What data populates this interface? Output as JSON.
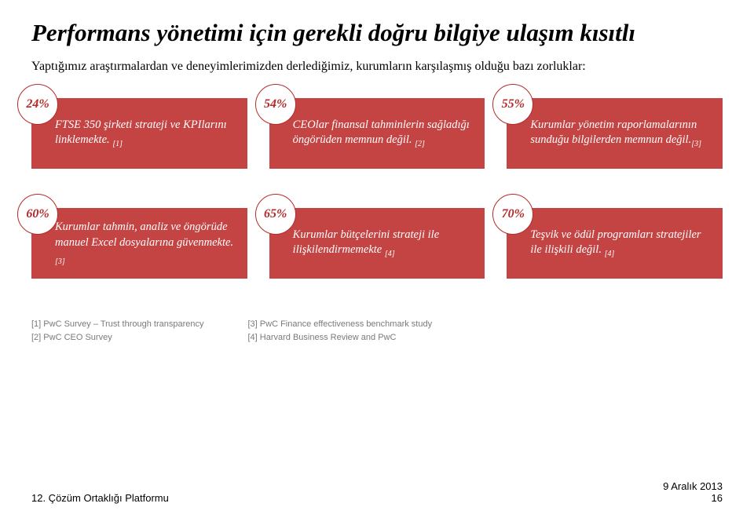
{
  "title": "Performans yönetimi için gerekli doğru bilgiye ulaşım kısıtlı",
  "subtitle": "Yaptığımız araştırmalardan ve deneyimlerimizden derlediğimiz, kurumların karşılaşmış olduğu bazı zorluklar:",
  "colors": {
    "badge_bg": "#ffffff",
    "badge_text": "#b52a2a",
    "card_bg": "#c44444",
    "tint_bg": "#e7c9c9",
    "tint_overlay": "rgba(196,68,68,0.92)",
    "card_text": "#ffffff",
    "ref_text": "#7a7a7a",
    "badge_border": "#b52a2a"
  },
  "row1": [
    {
      "pct": "24%",
      "text": "FTSE 350 şirketi strateji ve KPIlarını linklemekte.",
      "ref": "[1]"
    },
    {
      "pct": "54%",
      "text": "CEOlar finansal tahminlerin sağladığı öngörüden memnun değil.",
      "ref": "[2]"
    },
    {
      "pct": "55%",
      "text": "Kurumlar yönetim raporlamalarının sunduğu bilgilerden memnun değil.",
      "ref": "[3]"
    }
  ],
  "row2": [
    {
      "pct": "60%",
      "text": "Kurumlar tahmin, analiz ve öngörüde manuel Excel dosyalarına güvenmekte.",
      "ref": "[3]"
    },
    {
      "pct": "65%",
      "text": "Kurumlar  bütçelerini strateji ile ilişkilendirmemekte",
      "ref": "[4]"
    },
    {
      "pct": "70%",
      "text": "Teşvik ve ödül programları stratejiler ile ilişkili değil.",
      "ref": "[4]"
    }
  ],
  "refs_left": {
    "l1": "[1] PwC Survey – Trust through transparency",
    "l2": "[2] PwC CEO Survey"
  },
  "refs_right": {
    "l1": "[3] PwC Finance effectiveness benchmark study",
    "l2": "[4] Harvard Business Review and PwC"
  },
  "footer": {
    "left": "12. Çözüm Ortaklığı Platformu",
    "date": "9 Aralık 2013",
    "page": "16"
  },
  "style": {
    "title_fontsize": "31px",
    "subtitle_fontsize": "16px",
    "card_fontsize": "14.5px",
    "badge_size": "52px",
    "badge_fontsize": "16px"
  }
}
